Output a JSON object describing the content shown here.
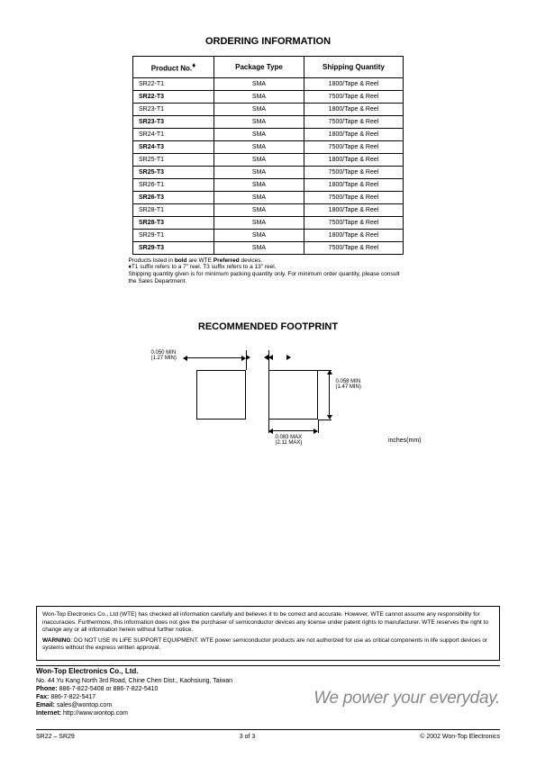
{
  "ordering": {
    "title": "ORDERING INFORMATION",
    "headers": {
      "product": "Product No.",
      "package": "Package Type",
      "shipping": "Shipping Quantity"
    },
    "diamond": "♦",
    "rows": [
      {
        "product": "SR22-T1",
        "bold": false,
        "package": "SMA",
        "shipping": "1800/Tape & Reel"
      },
      {
        "product": "SR22-T3",
        "bold": true,
        "package": "SMA",
        "shipping": "7500/Tape & Reel"
      },
      {
        "product": "SR23-T1",
        "bold": false,
        "package": "SMA",
        "shipping": "1800/Tape & Reel"
      },
      {
        "product": "SR23-T3",
        "bold": true,
        "package": "SMA",
        "shipping": "7500/Tape & Reel"
      },
      {
        "product": "SR24-T1",
        "bold": false,
        "package": "SMA",
        "shipping": "1800/Tape & Reel"
      },
      {
        "product": "SR24-T3",
        "bold": true,
        "package": "SMA",
        "shipping": "7500/Tape & Reel"
      },
      {
        "product": "SR25-T1",
        "bold": false,
        "package": "SMA",
        "shipping": "1800/Tape & Reel"
      },
      {
        "product": "SR25-T3",
        "bold": true,
        "package": "SMA",
        "shipping": "7500/Tape & Reel"
      },
      {
        "product": "SR26-T1",
        "bold": false,
        "package": "SMA",
        "shipping": "1800/Tape & Reel"
      },
      {
        "product": "SR26-T3",
        "bold": true,
        "package": "SMA",
        "shipping": "7500/Tape & Reel"
      },
      {
        "product": "SR28-T1",
        "bold": false,
        "package": "SMA",
        "shipping": "1800/Tape & Reel"
      },
      {
        "product": "SR28-T3",
        "bold": true,
        "package": "SMA",
        "shipping": "7500/Tape & Reel"
      },
      {
        "product": "SR29-T1",
        "bold": false,
        "package": "SMA",
        "shipping": "1800/Tape & Reel"
      },
      {
        "product": "SR29-T3",
        "bold": true,
        "package": "SMA",
        "shipping": "7500/Tape & Reel"
      }
    ],
    "notes_1a": "Products listed in ",
    "notes_1b": "bold",
    "notes_1c": " are WTE ",
    "notes_1d": "Preferred",
    "notes_1e": " devices.",
    "notes_2": "♦T1 suffix refers to a 7\" reel. T3 suffix refers to a 13\" reel.",
    "notes_3": "Shipping quantity given is for minimum packing quantity only. For minimum order quantity, please consult the Sales Department."
  },
  "footprint": {
    "title": "RECOMMENDED FOOTPRINT",
    "dim_gap": "0.050 MIN",
    "dim_gap_mm": "(1.27 MIN)",
    "dim_width": "0.083 MAX",
    "dim_width_mm": "(2.11 MAX)",
    "dim_height": "0.058 MIN",
    "dim_height_mm": "(1.47 MIN)",
    "unit": "inches(mm)"
  },
  "disclaimer": {
    "p1": "Won-Top Electronics Co., Ltd (WTE) has checked all information carefully and believes it to be correct and accurate. However, WTE cannot assume any responsibility for inaccuracies. Furthermore, this information does not give the purchaser of semiconductor devices any license under patent rights to manufacturer. WTE reserves the right to change any or all information herein without further notice.",
    "warn_label": "WARNING",
    "p2": ": DO NOT USE IN LIFE SUPPORT EQUIPMENT. WTE power semiconductor products are not authorized for use as critical components in life support devices or systems without the express written approval."
  },
  "company": {
    "name": "Won-Top Electronics Co., Ltd.",
    "addr": "No. 44 Yu Kang North 3rd Road, Chine Chen Dist., Kaohsiung, Taiwan",
    "phone_label": "Phone:",
    "phone": " 886-7-822-5408 or 886-7-822-5410",
    "fax_label": "Fax:",
    "fax": " 886-7-822-5417",
    "email_label": "Email:",
    "email": " sales@wontop.com",
    "internet_label": "Internet:",
    "internet": " http://www.wontop.com"
  },
  "slogan": "We power your everyday.",
  "footer": {
    "left": "SR22 – SR29",
    "center": "3 of 3",
    "right": "© 2002 Won-Top Electronics"
  }
}
